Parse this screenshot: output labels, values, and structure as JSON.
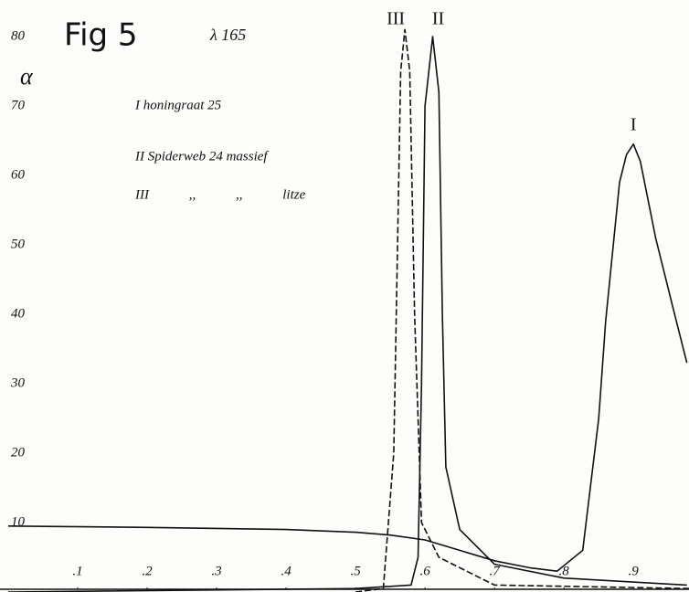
{
  "chart_data": {
    "type": "line",
    "title": "Fig 5",
    "subtitle": "λ 165",
    "y_label": "α",
    "legend_notes": [
      "I honingraat 25",
      "II Spiderweb 24 massief",
      "III ,, ,, litze"
    ],
    "xlim": [
      0,
      0.98
    ],
    "ylim": [
      0,
      85
    ],
    "xticks": [
      {
        "value": 0.1,
        "label": ".1"
      },
      {
        "value": 0.2,
        "label": ".2"
      },
      {
        "value": 0.3,
        "label": ".3"
      },
      {
        "value": 0.4,
        "label": ".4"
      },
      {
        "value": 0.5,
        "label": ".5"
      },
      {
        "value": 0.6,
        "label": ".6"
      },
      {
        "value": 0.7,
        "label": ".7"
      },
      {
        "value": 0.8,
        "label": ".8"
      },
      {
        "value": 0.9,
        "label": ".9"
      }
    ],
    "yticks": [
      10,
      20,
      30,
      40,
      50,
      60,
      70,
      80
    ],
    "grid": false,
    "series": [
      {
        "name": "I",
        "color": "#111111",
        "style": "solid",
        "x": [
          0,
          0.2,
          0.4,
          0.5,
          0.55,
          0.6,
          0.65,
          0.7,
          0.75,
          0.79,
          0.827,
          0.85,
          0.86,
          0.88,
          0.89,
          0.9,
          0.91,
          0.932,
          0.958,
          0.977
        ],
        "values": [
          9.5,
          9.3,
          9,
          8.6,
          8.2,
          7.5,
          6,
          4.5,
          3.5,
          3,
          6,
          25,
          39,
          59,
          63,
          64.5,
          62,
          51,
          40.5,
          33
        ]
      },
      {
        "name": "II",
        "color": "#111111",
        "style": "solid",
        "x": [
          0,
          0.5,
          0.58,
          0.59,
          0.595,
          0.6,
          0.611,
          0.62,
          0.625,
          0.63,
          0.65,
          0.7,
          0.8,
          0.977
        ],
        "values": [
          0,
          0.5,
          1,
          5,
          30,
          70,
          80,
          72,
          40,
          18,
          9,
          4,
          2,
          1
        ]
      },
      {
        "name": "III",
        "color": "#111111",
        "style": "dashed",
        "x": [
          0.5,
          0.54,
          0.555,
          0.565,
          0.571,
          0.578,
          0.585,
          0.595,
          0.62,
          0.7,
          0.98
        ],
        "values": [
          0,
          0.5,
          20,
          75,
          81,
          75,
          40,
          10,
          5,
          1,
          0.5
        ]
      }
    ]
  }
}
